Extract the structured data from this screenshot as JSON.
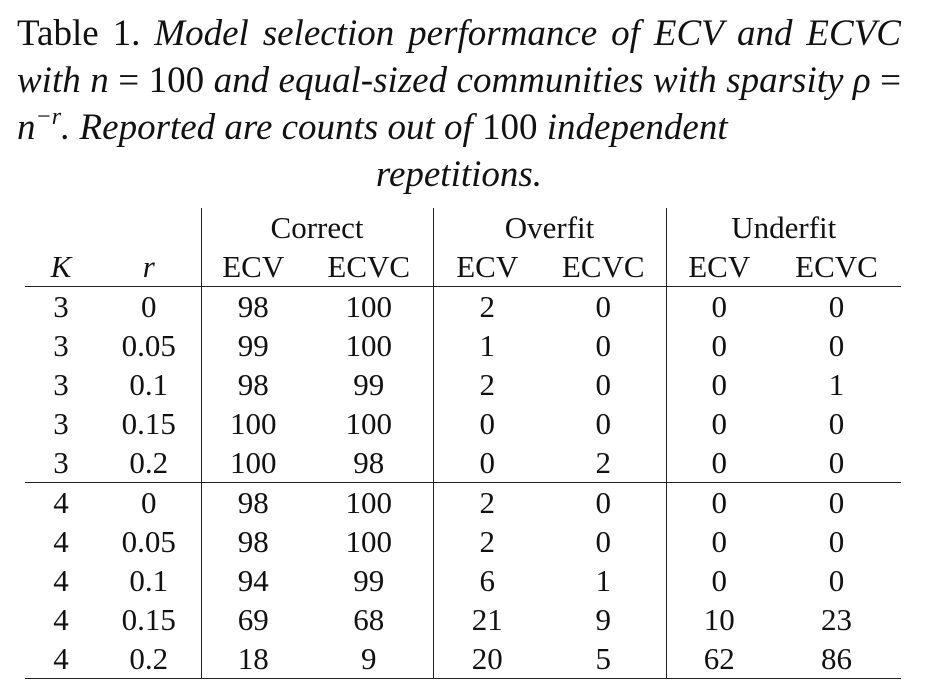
{
  "caption": {
    "label": "Table 1.",
    "part1": "Model selection performance of ECV and ECVC with",
    "n_eq": "n",
    "eq": "=",
    "n_val": "100",
    "part2": "and equal-sized communities with sparsity",
    "rho": "ρ",
    "eq2": "=",
    "n_base": "n",
    "exponent": "−r",
    "part3": ". Reported are counts out of",
    "count": "100",
    "part4": "independent",
    "part5": "repetitions."
  },
  "table": {
    "groups": [
      "Correct",
      "Overfit",
      "Underfit"
    ],
    "col_headers": [
      "K",
      "r",
      "ECV",
      "ECVC",
      "ECV",
      "ECVC",
      "ECV",
      "ECVC"
    ],
    "rows": [
      [
        "3",
        "0",
        "98",
        "100",
        "2",
        "0",
        "0",
        "0"
      ],
      [
        "3",
        "0.05",
        "99",
        "100",
        "1",
        "0",
        "0",
        "0"
      ],
      [
        "3",
        "0.1",
        "98",
        "99",
        "2",
        "0",
        "0",
        "1"
      ],
      [
        "3",
        "0.15",
        "100",
        "100",
        "0",
        "0",
        "0",
        "0"
      ],
      [
        "3",
        "0.2",
        "100",
        "98",
        "0",
        "2",
        "0",
        "0"
      ],
      [
        "4",
        "0",
        "98",
        "100",
        "2",
        "0",
        "0",
        "0"
      ],
      [
        "4",
        "0.05",
        "98",
        "100",
        "2",
        "0",
        "0",
        "0"
      ],
      [
        "4",
        "0.1",
        "94",
        "99",
        "6",
        "1",
        "0",
        "0"
      ],
      [
        "4",
        "0.15",
        "69",
        "68",
        "21",
        "9",
        "10",
        "23"
      ],
      [
        "4",
        "0.2",
        "18",
        "9",
        "20",
        "5",
        "62",
        "86"
      ]
    ]
  }
}
